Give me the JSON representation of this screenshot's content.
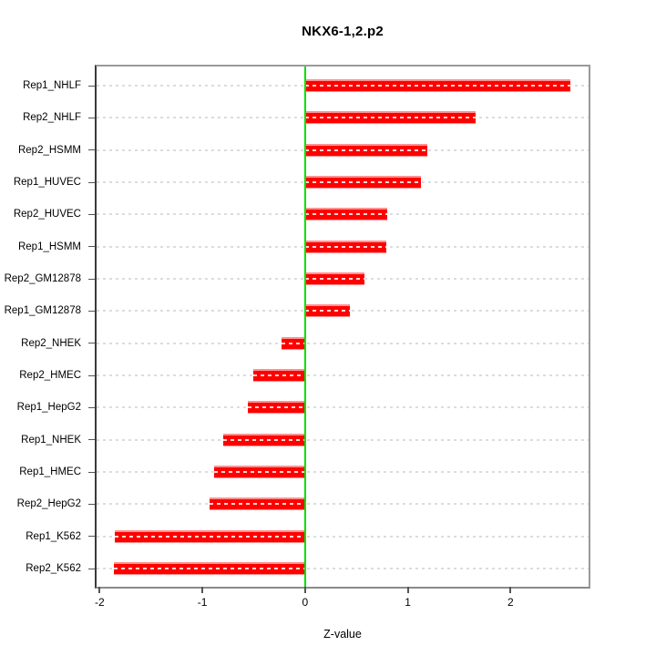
{
  "title": "NKX6-1,2.p2",
  "chart_data": {
    "type": "bar",
    "orientation": "horizontal",
    "title": "NKX6-1,2.p2",
    "xlabel": "Z-value",
    "ylabel": "",
    "xlim": [
      -2.03,
      2.76
    ],
    "x_ticks": [
      -2,
      -1,
      0,
      1,
      2
    ],
    "grid": "horizontal dashed gridline per category row",
    "zero_reference_line": 0,
    "legend": "none",
    "categories": [
      "Rep1_NHLF",
      "Rep2_NHLF",
      "Rep2_HSMM",
      "Rep1_HUVEC",
      "Rep2_HUVEC",
      "Rep1_HSMM",
      "Rep2_GM12878",
      "Rep1_GM12878",
      "Rep2_NHEK",
      "Rep2_HMEC",
      "Rep1_HepG2",
      "Rep1_NHEK",
      "Rep1_HMEC",
      "Rep2_HepG2",
      "Rep1_K562",
      "Rep2_K562"
    ],
    "values": [
      2.58,
      1.66,
      1.19,
      1.13,
      0.8,
      0.79,
      0.58,
      0.44,
      -0.23,
      -0.5,
      -0.56,
      -0.8,
      -0.89,
      -0.93,
      -1.85,
      -1.86
    ]
  },
  "colors": {
    "bar": "#ff0000",
    "bar_edge": "#ff9090",
    "zero_line": "#00e000",
    "grid": "#dcdcdc",
    "background": "#ffffff",
    "text": "#000000"
  }
}
